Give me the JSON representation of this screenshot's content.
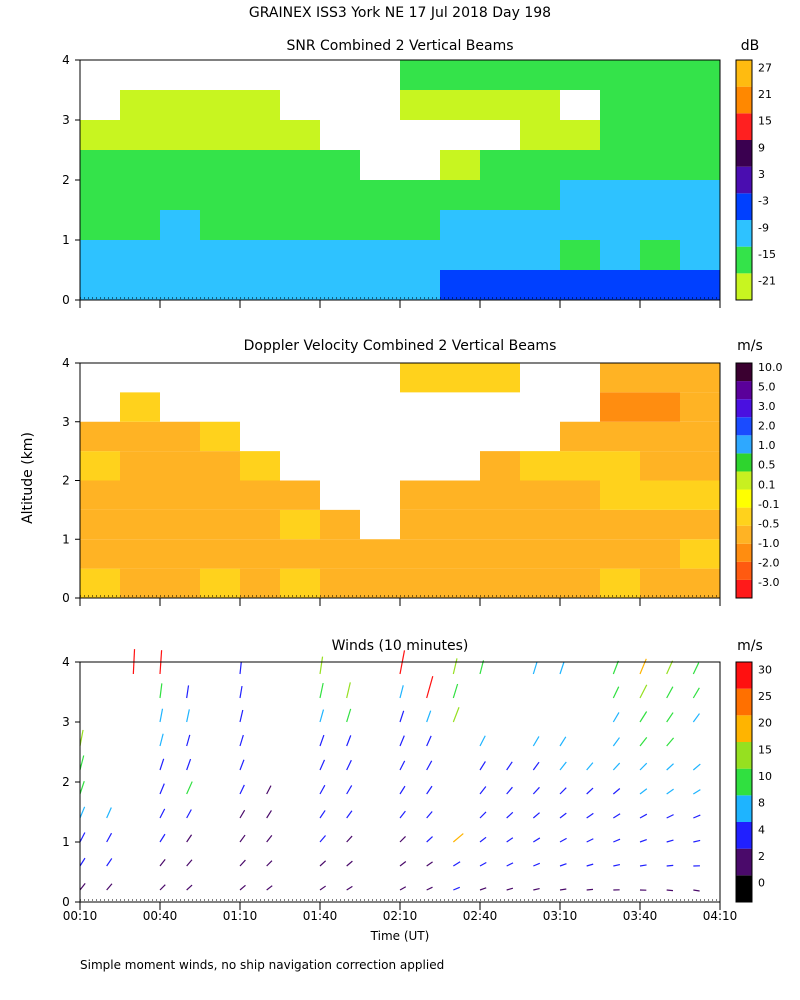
{
  "header": {
    "title": "GRAINEX ISS3 York NE  17 Jul 2018 Day 198"
  },
  "footer": {
    "note": "Simple moment winds, no ship navigation correction applied"
  },
  "shared": {
    "ylabel": "Altitude (km)",
    "xlabel": "Time (UT)",
    "yticks": [
      "0",
      "1",
      "2",
      "3",
      "4"
    ],
    "xticks": [
      "00:10",
      "00:40",
      "01:10",
      "01:40",
      "02:10",
      "02:40",
      "03:10",
      "03:40",
      "04:10"
    ]
  },
  "colors": {
    "snr": [
      "#c8f520",
      "#34e34a",
      "#2ec2ff",
      "#0040ff",
      "#4a0db0",
      "#3a0050",
      "#ff2020",
      "#ff8800",
      "#ffbb10"
    ],
    "doppler": [
      "#ff1a1a",
      "#ff5a10",
      "#ff8d10",
      "#ffb324",
      "#ffd21c",
      "#ffff00",
      "#c8f020",
      "#2ed42e",
      "#2ea8ff",
      "#1a4bff",
      "#4a10e0",
      "#5a009a",
      "#3a0030"
    ],
    "winds": [
      "#000000",
      "#4a0a6a",
      "#2020ff",
      "#1eb4ff",
      "#30e040",
      "#96e020",
      "#ffb400",
      "#ff7000",
      "#ff1010"
    ]
  },
  "chart_data": [
    {
      "type": "heatmap",
      "title": "SNR Combined 2 Vertical Beams",
      "unit": "dB",
      "xlabel": "Time (UT)",
      "ylabel": "Altitude (km)",
      "xlim": [
        "00:10",
        "04:10"
      ],
      "ylim": [
        0,
        4
      ],
      "colorbar_labels": [
        "-21",
        "-15",
        "-9",
        "-3",
        "3",
        "9",
        "15",
        "21",
        "27"
      ],
      "rows_altitude_km": [
        0.25,
        0.75,
        1.25,
        1.75,
        2.25,
        2.75,
        3.25,
        3.75
      ],
      "columns_time": [
        "00:10",
        "00:25",
        "00:40",
        "00:55",
        "01:10",
        "01:25",
        "01:40",
        "01:55",
        "02:10",
        "02:25",
        "02:40",
        "02:55",
        "03:10",
        "03:25",
        "03:40",
        "03:55"
      ],
      "values_db": [
        [
          -8,
          -8,
          -7,
          -8,
          -7,
          -9,
          -9,
          -8,
          -6,
          -4,
          -3,
          -2,
          -1,
          -2,
          -3,
          -3
        ],
        [
          -9,
          -10,
          -9,
          -10,
          -9,
          -10,
          -10,
          -10,
          -11,
          -11,
          -11,
          -10,
          -12,
          -11,
          -12,
          -11
        ],
        [
          -12,
          -12,
          -11,
          -12,
          -12,
          -13,
          -13,
          -13,
          -12,
          -11,
          -10,
          -9,
          -8,
          -7,
          -6,
          -6
        ],
        [
          -14,
          -13,
          -12,
          -13,
          -13,
          -14,
          -14,
          -14,
          -13,
          -13,
          -12,
          -12,
          -11,
          -11,
          -10,
          -10
        ],
        [
          -16,
          -15,
          -15,
          -16,
          -16,
          -17,
          -17,
          null,
          null,
          -18,
          -17,
          -17,
          -16,
          -16,
          -15,
          -15
        ],
        [
          -18,
          -18,
          -19,
          -18,
          -19,
          -20,
          null,
          null,
          null,
          null,
          null,
          -19,
          -18,
          -17,
          -16,
          -16
        ],
        [
          null,
          -19,
          -20,
          -19,
          -20,
          null,
          null,
          null,
          -19,
          -19,
          -18,
          -18,
          null,
          -16,
          -15,
          -15
        ],
        [
          null,
          null,
          null,
          null,
          null,
          null,
          null,
          null,
          -17,
          -17,
          -16,
          -16,
          -15,
          -15,
          -15,
          -14
        ]
      ]
    },
    {
      "type": "heatmap",
      "title": "Doppler Velocity Combined 2 Vertical Beams",
      "unit": "m/s",
      "xlabel": "Time (UT)",
      "ylabel": "Altitude (km)",
      "xlim": [
        "00:10",
        "04:10"
      ],
      "ylim": [
        0,
        4
      ],
      "colorbar_labels": [
        "-3.0",
        "-2.0",
        "-1.0",
        "-0.5",
        "-0.1",
        "0.1",
        "0.5",
        "1.0",
        "2.0",
        "3.0",
        "5.0",
        "10.0"
      ],
      "rows_altitude_km": [
        0.25,
        0.75,
        1.25,
        1.75,
        2.25,
        2.75,
        3.25,
        3.75
      ],
      "columns_time": [
        "00:10",
        "00:25",
        "00:40",
        "00:55",
        "01:10",
        "01:25",
        "01:40",
        "01:55",
        "02:10",
        "02:25",
        "02:40",
        "02:55",
        "03:10",
        "03:25",
        "03:40",
        "03:55"
      ],
      "values_ms": [
        [
          -0.2,
          -0.3,
          -0.3,
          -0.2,
          -0.3,
          -0.2,
          -0.3,
          -0.3,
          -0.4,
          -0.6,
          -0.5,
          -0.4,
          -0.3,
          -0.2,
          -0.3,
          -0.3
        ],
        [
          -0.3,
          -0.3,
          -0.4,
          -0.3,
          -0.3,
          -0.3,
          -0.3,
          -0.3,
          -0.5,
          -0.7,
          -0.6,
          -0.5,
          -0.4,
          -0.3,
          -0.3,
          -0.2
        ],
        [
          -0.3,
          -0.4,
          -0.3,
          -0.3,
          -0.3,
          -0.2,
          -0.3,
          null,
          -0.5,
          -0.6,
          -0.6,
          -0.5,
          -0.4,
          -0.3,
          -0.3,
          -0.3
        ],
        [
          -0.3,
          -0.4,
          -0.5,
          -0.3,
          -0.3,
          -0.3,
          null,
          null,
          -0.4,
          -0.5,
          -0.5,
          -0.4,
          -0.3,
          -0.2,
          -0.2,
          -0.2
        ],
        [
          -0.2,
          -0.3,
          -0.4,
          -0.3,
          -0.2,
          null,
          null,
          null,
          null,
          null,
          -0.3,
          -0.2,
          -0.1,
          0.0,
          -0.4,
          -0.5
        ],
        [
          -0.3,
          -0.3,
          -0.3,
          -0.2,
          null,
          null,
          null,
          null,
          null,
          null,
          null,
          null,
          -0.3,
          -0.5,
          -0.6,
          -0.4
        ],
        [
          null,
          -0.2,
          null,
          null,
          null,
          null,
          null,
          null,
          null,
          null,
          null,
          null,
          null,
          -1.2,
          -1.0,
          -0.4
        ],
        [
          null,
          null,
          null,
          null,
          null,
          null,
          null,
          null,
          -0.2,
          -0.2,
          -0.2,
          null,
          null,
          -0.4,
          -0.3,
          -0.3
        ]
      ]
    },
    {
      "type": "wind-barbs",
      "title": "Winds (10 minutes)",
      "unit": "m/s",
      "xlabel": "Time (UT)",
      "ylabel": "Altitude (km)",
      "xlim": [
        "00:10",
        "04:10"
      ],
      "ylim": [
        0,
        4
      ],
      "colorbar_labels": [
        "0",
        "2",
        "4",
        "8",
        "10",
        "15",
        "20",
        "25",
        "30"
      ],
      "profile_times": [
        "00:10",
        "00:20",
        "00:30",
        "00:40",
        "00:50",
        "01:10",
        "01:20",
        "01:40",
        "01:50",
        "02:10",
        "02:20",
        "02:30",
        "02:40",
        "02:50",
        "03:00",
        "03:10",
        "03:20",
        "03:30",
        "03:40",
        "03:50",
        "04:00"
      ],
      "levels_km": [
        0.2,
        0.6,
        1.0,
        1.4,
        1.8,
        2.2,
        2.6,
        3.0,
        3.4,
        3.8
      ],
      "speeds_ms": [
        [
          3,
          4,
          6,
          8,
          10,
          12,
          14,
          null,
          null,
          null
        ],
        [
          3,
          4,
          5,
          7,
          null,
          null,
          null,
          null,
          null,
          null
        ],
        [
          null,
          null,
          null,
          null,
          null,
          null,
          null,
          null,
          null,
          30
        ],
        [
          2,
          3,
          4,
          5,
          6,
          6,
          7,
          8,
          10,
          28
        ],
        [
          2,
          3,
          3,
          4,
          12,
          6,
          5,
          7,
          6,
          null
        ],
        [
          2,
          3,
          3,
          3,
          4,
          5,
          5,
          6,
          5,
          5
        ],
        [
          2,
          2,
          3,
          3,
          3,
          null,
          null,
          null,
          null,
          null
        ],
        [
          2,
          3,
          4,
          4,
          5,
          6,
          6,
          8,
          12,
          16
        ],
        [
          2,
          3,
          3,
          4,
          5,
          6,
          6,
          10,
          14,
          null
        ],
        [
          2,
          3,
          3,
          4,
          4,
          5,
          6,
          6,
          8,
          30
        ],
        [
          2,
          3,
          4,
          4,
          5,
          6,
          6,
          7,
          29,
          null
        ],
        [
          4,
          6,
          20,
          null,
          null,
          null,
          null,
          16,
          12,
          14
        ],
        [
          3,
          4,
          4,
          5,
          6,
          6,
          8,
          null,
          null,
          10
        ],
        [
          3,
          4,
          4,
          5,
          5,
          6,
          null,
          null,
          null,
          null
        ],
        [
          3,
          4,
          5,
          5,
          6,
          6,
          8,
          null,
          null,
          8
        ],
        [
          3,
          4,
          5,
          5,
          6,
          8,
          8,
          null,
          null,
          8
        ],
        [
          3,
          4,
          5,
          6,
          6,
          7,
          null,
          null,
          null,
          null
        ],
        [
          3,
          4,
          5,
          6,
          6,
          7,
          8,
          8,
          10,
          12
        ],
        [
          3,
          4,
          5,
          6,
          7,
          8,
          10,
          12,
          16,
          18
        ],
        [
          3,
          4,
          5,
          6,
          7,
          8,
          10,
          10,
          12,
          14
        ],
        [
          3,
          4,
          5,
          6,
          7,
          8,
          null,
          8,
          10,
          10
        ]
      ]
    }
  ]
}
